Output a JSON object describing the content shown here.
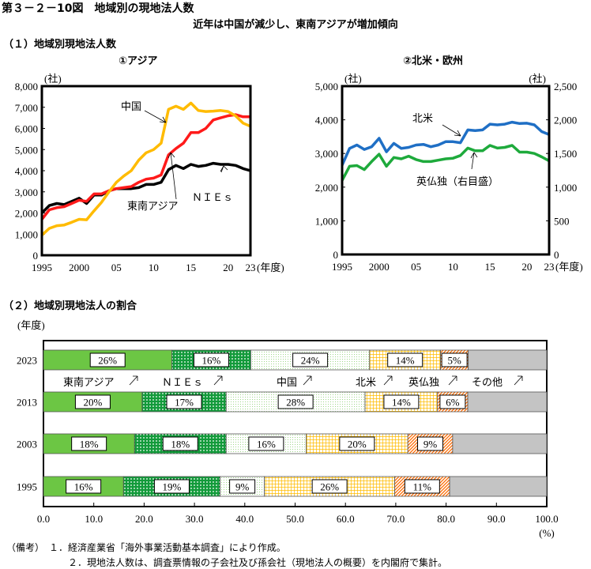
{
  "title": "第３－２－10図　地域別の現地法人数",
  "subtitle": "近年は中国が減少し、東南アジアが増加傾向",
  "section1": "（１）地域別現地法人数",
  "section2": "（２）地域別現地法人の割合",
  "notes": [
    "（備考）　１．経済産業省「海外事業活動基本調査」により作成。",
    "２．現地法人数は、調査票情報の子会社及び孫会社（現地法人の概要）を内閣府で集計。"
  ],
  "colors": {
    "sea": "#ff1a1a",
    "china": "#ffbb00",
    "nies": "#000000",
    "na": "#1f6fc5",
    "eu": "#1eaa3c"
  },
  "chart_data": [
    {
      "type": "line",
      "title": "①アジア",
      "ylabel": "(社)",
      "xlabel": "(年度)",
      "ylim": [
        0,
        8000
      ],
      "yticks": [
        "0",
        "1,000",
        "2,000",
        "3,000",
        "4,000",
        "5,000",
        "6,000",
        "7,000",
        "8,000"
      ],
      "xticks": [
        {
          "v": 1995,
          "label": "1995"
        },
        {
          "v": 2000,
          "label": "2000"
        },
        {
          "v": 2005,
          "label": "05"
        },
        {
          "v": 2010,
          "label": "10"
        },
        {
          "v": 2015,
          "label": "15"
        },
        {
          "v": 2020,
          "label": "20"
        },
        {
          "v": 2023,
          "label": "23"
        }
      ],
      "x": [
        1995,
        1996,
        1997,
        1998,
        1999,
        2000,
        2001,
        2002,
        2003,
        2004,
        2005,
        2006,
        2007,
        2008,
        2009,
        2010,
        2011,
        2012,
        2013,
        2014,
        2015,
        2016,
        2017,
        2018,
        2019,
        2020,
        2021,
        2022,
        2023
      ],
      "series": [
        {
          "name": "NIEs",
          "label": "ＮＩＥｓ",
          "color": "#000000",
          "values": [
            2000,
            2350,
            2450,
            2400,
            2550,
            2700,
            2450,
            2850,
            2850,
            3050,
            3150,
            3150,
            3150,
            3200,
            3350,
            3350,
            3450,
            4050,
            4250,
            4100,
            4300,
            4200,
            4250,
            4350,
            4300,
            4300,
            4250,
            4100,
            4000
          ]
        },
        {
          "name": "東南アジア",
          "label": "東南アジア",
          "color": "#ff1a1a",
          "values": [
            1700,
            2150,
            2250,
            2300,
            2450,
            2600,
            2550,
            2900,
            2900,
            3050,
            3150,
            3200,
            3250,
            3450,
            3600,
            3650,
            3800,
            4750,
            5050,
            5300,
            5800,
            5800,
            6000,
            6400,
            6500,
            6600,
            6650,
            6550,
            6550
          ]
        },
        {
          "name": "中国",
          "label": "中国",
          "color": "#ffbb00",
          "values": [
            950,
            1270,
            1400,
            1430,
            1560,
            1700,
            1680,
            2100,
            2500,
            3000,
            3450,
            3750,
            4000,
            4500,
            4850,
            5000,
            5300,
            6900,
            7050,
            6900,
            7200,
            6850,
            6800,
            6820,
            6850,
            6800,
            6600,
            6250,
            6100
          ]
        }
      ]
    },
    {
      "type": "line",
      "title": "②北米・欧州",
      "ylabel": "(社)",
      "ylabel_right": "(社)",
      "xlabel": "(年度)",
      "ylim": [
        0,
        5000
      ],
      "ylim_right": [
        0,
        2500
      ],
      "yticks": [
        "0",
        "1,000",
        "2,000",
        "3,000",
        "4,000",
        "5,000"
      ],
      "yticks_right": [
        "0",
        "500",
        "1,000",
        "1,500",
        "2,000",
        "2,500"
      ],
      "xticks": [
        {
          "v": 1995,
          "label": "1995"
        },
        {
          "v": 2000,
          "label": "2000"
        },
        {
          "v": 2005,
          "label": "05"
        },
        {
          "v": 2010,
          "label": "10"
        },
        {
          "v": 2015,
          "label": "15"
        },
        {
          "v": 2020,
          "label": "20"
        },
        {
          "v": 2023,
          "label": "23"
        }
      ],
      "x": [
        1995,
        1996,
        1997,
        1998,
        1999,
        2000,
        2001,
        2002,
        2003,
        2004,
        2005,
        2006,
        2007,
        2008,
        2009,
        2010,
        2011,
        2012,
        2013,
        2014,
        2015,
        2016,
        2017,
        2018,
        2019,
        2020,
        2021,
        2022,
        2023
      ],
      "series": [
        {
          "name": "北米",
          "label": "北米",
          "color": "#1f6fc5",
          "axis": "left",
          "values": [
            2650,
            3150,
            3250,
            3120,
            3200,
            3450,
            3050,
            3300,
            3150,
            3180,
            3250,
            3270,
            3200,
            3250,
            3350,
            3350,
            3320,
            3700,
            3680,
            3700,
            3870,
            3850,
            3870,
            3930,
            3890,
            3900,
            3850,
            3650,
            3560
          ]
        },
        {
          "name": "英仏独",
          "label": "英仏独（右目盛）",
          "color": "#1eaa3c",
          "axis": "right",
          "values": [
            1100,
            1310,
            1320,
            1260,
            1380,
            1490,
            1310,
            1440,
            1420,
            1460,
            1410,
            1380,
            1380,
            1400,
            1420,
            1430,
            1470,
            1580,
            1540,
            1540,
            1620,
            1580,
            1590,
            1620,
            1520,
            1520,
            1500,
            1450,
            1390
          ]
        }
      ]
    },
    {
      "type": "bar",
      "stacked": true,
      "orientation": "horizontal",
      "title": "地域別現地法人の割合",
      "ylabel": "(年度)",
      "xlabel": "(%)",
      "xlim": [
        0,
        100
      ],
      "xticks": [
        "0.0",
        "10.0",
        "20.0",
        "30.0",
        "40.0",
        "50.0",
        "60.0",
        "70.0",
        "80.0",
        "90.0",
        "100.0"
      ],
      "categories": [
        "2023",
        "2013",
        "2003",
        "1995"
      ],
      "series": [
        {
          "name": "東南アジア",
          "pattern": "sea",
          "values": [
            25.5,
            19.6,
            18.1,
            15.9
          ],
          "labels": [
            "26%",
            "20%",
            "18%",
            "16%"
          ]
        },
        {
          "name": "ＮＩＥｓ",
          "pattern": "nies",
          "values": [
            15.7,
            16.7,
            18.2,
            19.2
          ],
          "labels": [
            "16%",
            "17%",
            "18%",
            "19%"
          ]
        },
        {
          "name": "中国",
          "pattern": "china",
          "values": [
            23.6,
            27.6,
            15.9,
            8.8
          ],
          "labels": [
            "24%",
            "28%",
            "16%",
            "9%"
          ]
        },
        {
          "name": "北米",
          "pattern": "na",
          "values": [
            14.1,
            14.4,
            20.2,
            25.9
          ],
          "labels": [
            "14%",
            "14%",
            "20%",
            "26%"
          ]
        },
        {
          "name": "英仏独",
          "pattern": "eu",
          "values": [
            5.5,
            6.0,
            8.9,
            10.9
          ],
          "labels": [
            "5%",
            "6%",
            "9%",
            "11%"
          ]
        },
        {
          "name": "その他",
          "pattern": "other",
          "values": [
            15.6,
            15.7,
            18.7,
            19.3
          ],
          "labels": [
            "",
            "",
            "",
            ""
          ]
        }
      ]
    }
  ]
}
